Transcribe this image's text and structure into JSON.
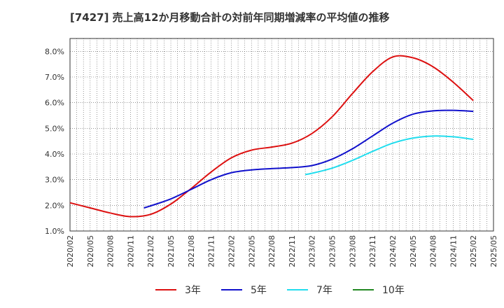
{
  "chart_data": {
    "type": "line",
    "title": "[7427]  売上高12か月移動合計の対前年同期増減率の平均値の推移",
    "xlabel": "",
    "ylabel": "",
    "ylim": [
      1.0,
      8.5
    ],
    "y_ticks": [
      "1.0%",
      "2.0%",
      "3.0%",
      "4.0%",
      "5.0%",
      "6.0%",
      "7.0%",
      "8.0%"
    ],
    "y_tick_values": [
      1.0,
      2.0,
      3.0,
      4.0,
      5.0,
      6.0,
      7.0,
      8.0
    ],
    "x_ticks": [
      "2020/02",
      "2020/05",
      "2020/08",
      "2020/11",
      "2021/02",
      "2021/05",
      "2021/08",
      "2021/11",
      "2022/02",
      "2022/05",
      "2022/08",
      "2022/11",
      "2023/02",
      "2023/05",
      "2023/08",
      "2023/11",
      "2024/02",
      "2024/05",
      "2024/08",
      "2024/11",
      "2025/02",
      "2025/05"
    ],
    "grid": true,
    "legend_position": "bottom",
    "series": [
      {
        "name": "3年",
        "color": "#dd1111",
        "points": [
          [
            "2020/02",
            2.1
          ],
          [
            "2020/05",
            1.9
          ],
          [
            "2020/08",
            1.7
          ],
          [
            "2020/11",
            1.56
          ],
          [
            "2021/02",
            1.65
          ],
          [
            "2021/05",
            2.05
          ],
          [
            "2021/08",
            2.65
          ],
          [
            "2021/11",
            3.3
          ],
          [
            "2022/02",
            3.85
          ],
          [
            "2022/05",
            4.15
          ],
          [
            "2022/08",
            4.27
          ],
          [
            "2022/11",
            4.42
          ],
          [
            "2023/02",
            4.8
          ],
          [
            "2023/05",
            5.45
          ],
          [
            "2023/08",
            6.35
          ],
          [
            "2023/11",
            7.2
          ],
          [
            "2024/02",
            7.78
          ],
          [
            "2024/05",
            7.75
          ],
          [
            "2024/08",
            7.4
          ],
          [
            "2024/11",
            6.8
          ],
          [
            "2025/02",
            6.08
          ]
        ]
      },
      {
        "name": "5年",
        "color": "#1111cc",
        "points": [
          [
            "2021/01",
            1.9
          ],
          [
            "2021/02",
            1.98
          ],
          [
            "2021/05",
            2.25
          ],
          [
            "2021/08",
            2.62
          ],
          [
            "2021/11",
            3.0
          ],
          [
            "2022/02",
            3.27
          ],
          [
            "2022/05",
            3.38
          ],
          [
            "2022/08",
            3.43
          ],
          [
            "2022/11",
            3.47
          ],
          [
            "2023/02",
            3.55
          ],
          [
            "2023/05",
            3.8
          ],
          [
            "2023/08",
            4.2
          ],
          [
            "2023/11",
            4.7
          ],
          [
            "2024/02",
            5.2
          ],
          [
            "2024/05",
            5.55
          ],
          [
            "2024/08",
            5.68
          ],
          [
            "2024/11",
            5.7
          ],
          [
            "2025/02",
            5.66
          ]
        ]
      },
      {
        "name": "7年",
        "color": "#22ddee",
        "points": [
          [
            "2023/01",
            3.2
          ],
          [
            "2023/02",
            3.25
          ],
          [
            "2023/05",
            3.45
          ],
          [
            "2023/08",
            3.75
          ],
          [
            "2023/11",
            4.1
          ],
          [
            "2024/02",
            4.42
          ],
          [
            "2024/05",
            4.62
          ],
          [
            "2024/08",
            4.7
          ],
          [
            "2024/11",
            4.67
          ],
          [
            "2025/02",
            4.57
          ]
        ]
      },
      {
        "name": "10年",
        "color": "#228822",
        "points": []
      }
    ]
  }
}
